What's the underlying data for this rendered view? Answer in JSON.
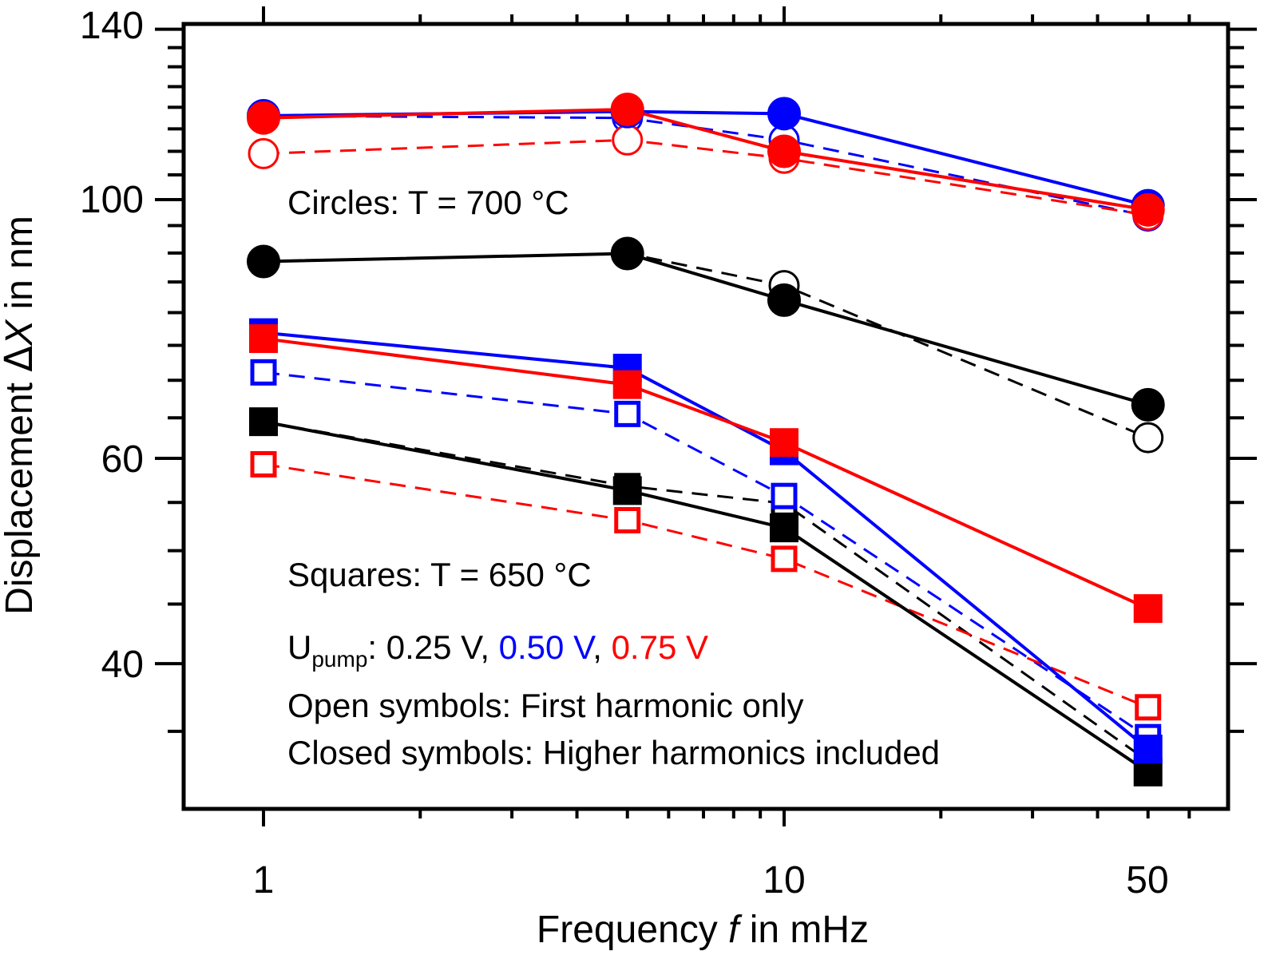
{
  "chart_data": {
    "type": "line",
    "xscale": "log",
    "yscale": "log",
    "xlim": [
      0.65,
      70
    ],
    "ylim": [
      31.5,
      140
    ],
    "xticks_labeled": [
      1,
      10,
      50
    ],
    "xtick_labels": [
      "1",
      "10",
      "50"
    ],
    "yticks_labeled": [
      40,
      60,
      100,
      140
    ],
    "ytick_labels": [
      "40",
      "60",
      "100",
      "140"
    ],
    "xlabel": {
      "pre": "Frequency ",
      "var": "f",
      "post": " in mHz"
    },
    "ylabel": {
      "pre": "Displacement ",
      "sym": "Δ",
      "var": "X",
      "post": " in nm"
    },
    "x": [
      1,
      5,
      10,
      50
    ],
    "colors": {
      "U025": "#000000",
      "U050": "#0000ff",
      "U075": "#ff0000"
    },
    "series": [
      {
        "voltage": "0.25 V",
        "temp": "700 °C",
        "marker": "circle",
        "fill": "closed",
        "color": "#000000",
        "values": [
          88.5,
          89.9,
          82.0,
          66.7
        ]
      },
      {
        "voltage": "0.25 V",
        "temp": "700 °C",
        "marker": "circle",
        "fill": "open",
        "color": "#000000",
        "values": [
          88.5,
          89.9,
          84.4,
          62.5
        ]
      },
      {
        "voltage": "0.50 V",
        "temp": "700 °C",
        "marker": "circle",
        "fill": "closed",
        "color": "#0000ff",
        "values": [
          118.0,
          119.0,
          118.5,
          98.8
        ]
      },
      {
        "voltage": "0.50 V",
        "temp": "700 °C",
        "marker": "circle",
        "fill": "open",
        "color": "#0000ff",
        "values": [
          118.0,
          117.5,
          112.5,
          96.8
        ]
      },
      {
        "voltage": "0.75 V",
        "temp": "700 °C",
        "marker": "circle",
        "fill": "closed",
        "color": "#ff0000",
        "values": [
          117.5,
          119.5,
          110.0,
          98.0
        ]
      },
      {
        "voltage": "0.75 V",
        "temp": "700 °C",
        "marker": "circle",
        "fill": "open",
        "color": "#ff0000",
        "values": [
          109.5,
          112.5,
          108.5,
          97.0
        ]
      },
      {
        "voltage": "0.25 V",
        "temp": "650 °C",
        "marker": "square",
        "fill": "closed",
        "color": "#000000",
        "values": [
          64.5,
          56.3,
          52.3,
          32.3
        ]
      },
      {
        "voltage": "0.25 V",
        "temp": "650 °C",
        "marker": "square",
        "fill": "open",
        "color": "#000000",
        "values": [
          64.5,
          56.8,
          54.9,
          33.0
        ]
      },
      {
        "voltage": "0.50 V",
        "temp": "650 °C",
        "marker": "square",
        "fill": "closed",
        "color": "#0000ff",
        "values": [
          76.9,
          71.7,
          60.9,
          33.8
        ]
      },
      {
        "voltage": "0.50 V",
        "temp": "650 °C",
        "marker": "square",
        "fill": "open",
        "color": "#0000ff",
        "values": [
          71.1,
          65.5,
          55.7,
          34.6
        ]
      },
      {
        "voltage": "0.75 V",
        "temp": "650 °C",
        "marker": "square",
        "fill": "closed",
        "color": "#ff0000",
        "values": [
          76.0,
          69.4,
          61.9,
          44.6
        ]
      },
      {
        "voltage": "0.75 V",
        "temp": "650 °C",
        "marker": "square",
        "fill": "open",
        "color": "#ff0000",
        "values": [
          59.3,
          53.1,
          49.2,
          36.7
        ]
      }
    ],
    "annotations": {
      "circles": "Circles: T = 700 °C",
      "squares": "Squares: T = 650 °C",
      "upump_U": "U",
      "upump_sub": "pump",
      "upump_colon": ": ",
      "v1": "0.25 V",
      "sep1": ", ",
      "v2": "0.50 V",
      "sep2": ", ",
      "v3": "0.75 V",
      "open": "Open symbols: First harmonic only",
      "closed": "Closed symbols: Higher harmonics included"
    },
    "grid": false,
    "legend": "none"
  }
}
